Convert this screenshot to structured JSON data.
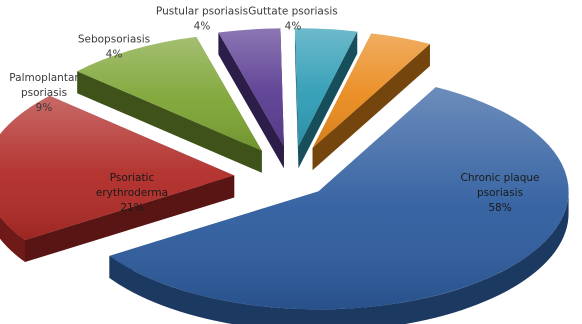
{
  "chart_data": {
    "type": "pie",
    "title": "",
    "legend": "none",
    "slices": [
      {
        "label": "Chronic plaque psoriasis",
        "label_lines": [
          "Chronic plaque",
          "psoriasis"
        ],
        "percent_label": "58%",
        "value": 58,
        "color": "#2d5c9e"
      },
      {
        "label": "Psoriatic erythroderma",
        "label_lines": [
          "Psoriatic",
          "erythroderma"
        ],
        "percent_label": "21%",
        "value": 21,
        "color": "#b02a26"
      },
      {
        "label": "Palmoplantar psoriasis",
        "label_lines": [
          "Palmoplantar",
          "psoriasis"
        ],
        "percent_label": "9%",
        "value": 9,
        "color": "#7da434"
      },
      {
        "label": "Sebopsoriasis",
        "label_lines": [
          "Sebopsoriasis"
        ],
        "percent_label": "4%",
        "value": 4,
        "color": "#5a3c92"
      },
      {
        "label": "Pustular psoriasis",
        "label_lines": [
          "Pustular psoriasis"
        ],
        "percent_label": "4%",
        "value": 4,
        "color": "#2e9cb5"
      },
      {
        "label": "Guttate psoriasis",
        "label_lines": [
          "Guttate psoriasis"
        ],
        "percent_label": "4%",
        "value": 4,
        "color": "#ea8a1c"
      }
    ]
  }
}
